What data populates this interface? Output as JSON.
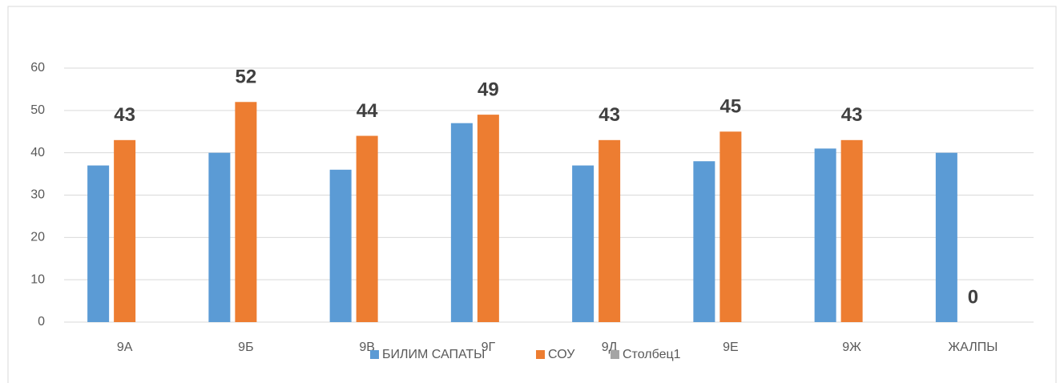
{
  "chart_data": {
    "type": "bar",
    "categories": [
      "9А",
      "9Б",
      "9В",
      "9Г",
      "9Д",
      "9Е",
      "9Ж",
      "ЖАЛПЫ"
    ],
    "series": [
      {
        "name": "БИЛИМ САПАТЫ",
        "color": "#5b9bd5",
        "values": [
          37,
          40,
          36,
          47,
          37,
          38,
          41,
          40
        ]
      },
      {
        "name": "СОУ",
        "color": "#ed7d31",
        "values": [
          43,
          52,
          44,
          49,
          43,
          45,
          43,
          0
        ],
        "show_labels": true
      },
      {
        "name": "Столбец1",
        "color": "#a5a5a5",
        "values": [
          null,
          null,
          null,
          null,
          null,
          null,
          null,
          null
        ]
      }
    ],
    "ylim": [
      0,
      60
    ],
    "yticks": [
      0,
      10,
      20,
      30,
      40,
      50,
      60
    ],
    "grid": true,
    "legend": "bottom"
  }
}
